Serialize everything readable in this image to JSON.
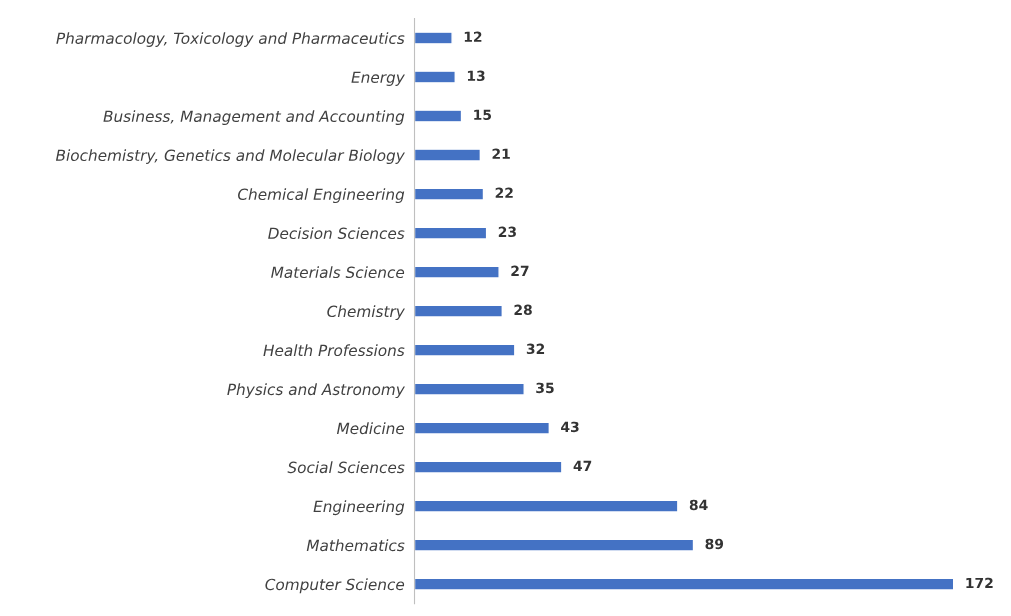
{
  "chart_data": {
    "type": "bar",
    "orientation": "horizontal",
    "categories": [
      "Pharmacology, Toxicology and Pharmaceutics",
      "Energy",
      "Business, Management and Accounting",
      "Biochemistry, Genetics and Molecular Biology",
      "Chemical Engineering",
      "Decision Sciences",
      "Materials Science",
      "Chemistry",
      "Health Professions",
      "Physics and Astronomy",
      "Medicine",
      "Social Sciences",
      "Engineering",
      "Mathematics",
      "Computer Science"
    ],
    "values": [
      12,
      13,
      15,
      21,
      22,
      23,
      27,
      28,
      32,
      35,
      43,
      47,
      84,
      89,
      172
    ],
    "color": "#4472c4",
    "data_labels": true,
    "tick_labels": "y",
    "grid": false,
    "legend": false
  }
}
